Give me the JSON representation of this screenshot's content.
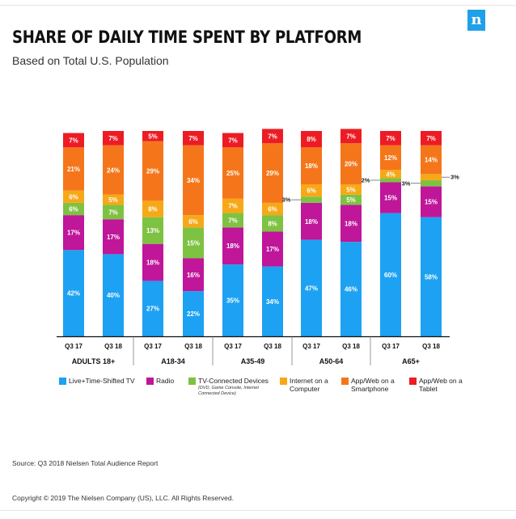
{
  "brand": {
    "logo_letter": "n"
  },
  "title": "SHARE OF DAILY TIME SPENT BY PLATFORM",
  "subtitle": "Based on Total U.S. Population",
  "chart_data": {
    "type": "bar",
    "stacked": true,
    "percent_stacked": true,
    "categories": [
      "Q3 17",
      "Q3 18",
      "Q3 17",
      "Q3 18",
      "Q3 17",
      "Q3 18",
      "Q3 17",
      "Q3 18",
      "Q3 17",
      "Q3 18"
    ],
    "groups": [
      {
        "label": "ADULTS 18+",
        "bars": [
          0,
          1
        ]
      },
      {
        "label": "A18-34",
        "bars": [
          2,
          3
        ]
      },
      {
        "label": "A35-49",
        "bars": [
          4,
          5
        ]
      },
      {
        "label": "A50-64",
        "bars": [
          6,
          7
        ]
      },
      {
        "label": "A65+",
        "bars": [
          8,
          9
        ]
      }
    ],
    "series": [
      {
        "name": "Live+Time-Shifted TV",
        "color": "#1da1f2",
        "values": [
          42,
          40,
          27,
          22,
          35,
          34,
          47,
          46,
          60,
          58
        ]
      },
      {
        "name": "Radio",
        "color": "#c0169a",
        "values": [
          17,
          17,
          18,
          16,
          18,
          17,
          18,
          18,
          15,
          15
        ]
      },
      {
        "name": "TV-Connected Devices",
        "color": "#7ec242",
        "values": [
          6,
          7,
          13,
          15,
          7,
          8,
          3,
          5,
          2,
          3
        ]
      },
      {
        "name": "Internet on a Computer",
        "color": "#f7a817",
        "values": [
          6,
          5,
          8,
          6,
          7,
          6,
          6,
          5,
          4,
          3
        ]
      },
      {
        "name": "App/Web on a Smartphone",
        "color": "#f5761a",
        "values": [
          21,
          24,
          29,
          34,
          25,
          29,
          18,
          20,
          12,
          14
        ]
      },
      {
        "name": "App/Web on a Tablet",
        "color": "#ed1c24",
        "values": [
          7,
          7,
          5,
          7,
          7,
          7,
          8,
          7,
          7,
          7
        ]
      }
    ],
    "labels_outside": [
      {
        "bar": 6,
        "series": 2,
        "text": "3%",
        "side": "left"
      },
      {
        "bar": 8,
        "series": 2,
        "text": "2%",
        "side": "left"
      },
      {
        "bar": 9,
        "series": 2,
        "text": "3%",
        "side": "left"
      },
      {
        "bar": 9,
        "series": 3,
        "text": "3%",
        "side": "right"
      }
    ],
    "ylim": [
      0,
      100
    ],
    "grid": false,
    "legend_position": "bottom"
  },
  "legend": [
    {
      "label": "Live+Time-Shifted TV",
      "color": "#1da1f2"
    },
    {
      "label": "Radio",
      "color": "#c0169a"
    },
    {
      "label": "TV-Connected Devices",
      "color": "#7ec242",
      "note": "(DVD, Game Console, Internet Connected Device)"
    },
    {
      "label": "Internet on a Computer",
      "color": "#f7a817"
    },
    {
      "label": "App/Web on a Smartphone",
      "color": "#f5761a"
    },
    {
      "label": "App/Web on a Tablet",
      "color": "#ed1c24"
    }
  ],
  "source": "Source: Q3 2018 Nielsen Total Audience Report",
  "copyright": "Copyright © 2019 The Nielsen Company (US), LLC. All Rights Reserved."
}
